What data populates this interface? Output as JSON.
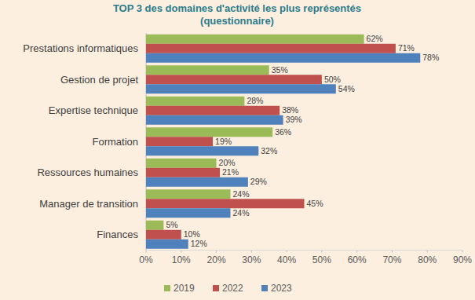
{
  "chart_data": {
    "type": "bar",
    "orientation": "horizontal",
    "title": "TOP 3 des domaines d'activité les plus représentés",
    "subtitle": "(questionnaire)",
    "categories": [
      "Prestations informatiques",
      "Gestion de projet",
      "Expertise technique",
      "Formation",
      "Ressources humaines",
      "Manager de transition",
      "Finances"
    ],
    "series": [
      {
        "name": "2019",
        "color": "#9bbb59",
        "values": [
          62,
          35,
          28,
          36,
          20,
          24,
          5
        ],
        "value_labels": [
          "62%",
          "35%",
          "28%",
          "36%",
          "20%",
          "24%",
          "5%"
        ]
      },
      {
        "name": "2022",
        "color": "#c0504d",
        "values": [
          71,
          50,
          38,
          19,
          21,
          45,
          10
        ],
        "value_labels": [
          "71%",
          "50%",
          "38%",
          "19%",
          "21%",
          "45%",
          "10%"
        ]
      },
      {
        "name": "2023",
        "color": "#4f81bd",
        "values": [
          78,
          54,
          39,
          32,
          29,
          24,
          12
        ],
        "value_labels": [
          "78%",
          "54%",
          "39%",
          "32%",
          "29%",
          "24%",
          "12%"
        ]
      }
    ],
    "xlim": [
      0,
      90
    ],
    "xticks": [
      {
        "value": 0,
        "label": "0%"
      },
      {
        "value": 10,
        "label": "10%"
      },
      {
        "value": 20,
        "label": "20%"
      },
      {
        "value": 30,
        "label": "30%"
      },
      {
        "value": 40,
        "label": "40%"
      },
      {
        "value": 50,
        "label": "50%"
      },
      {
        "value": 60,
        "label": "60%"
      },
      {
        "value": 70,
        "label": "70%"
      },
      {
        "value": 80,
        "label": "80%"
      },
      {
        "value": 90,
        "label": "90%"
      }
    ],
    "grid": false,
    "data_labels": true,
    "legend": "bottom"
  }
}
